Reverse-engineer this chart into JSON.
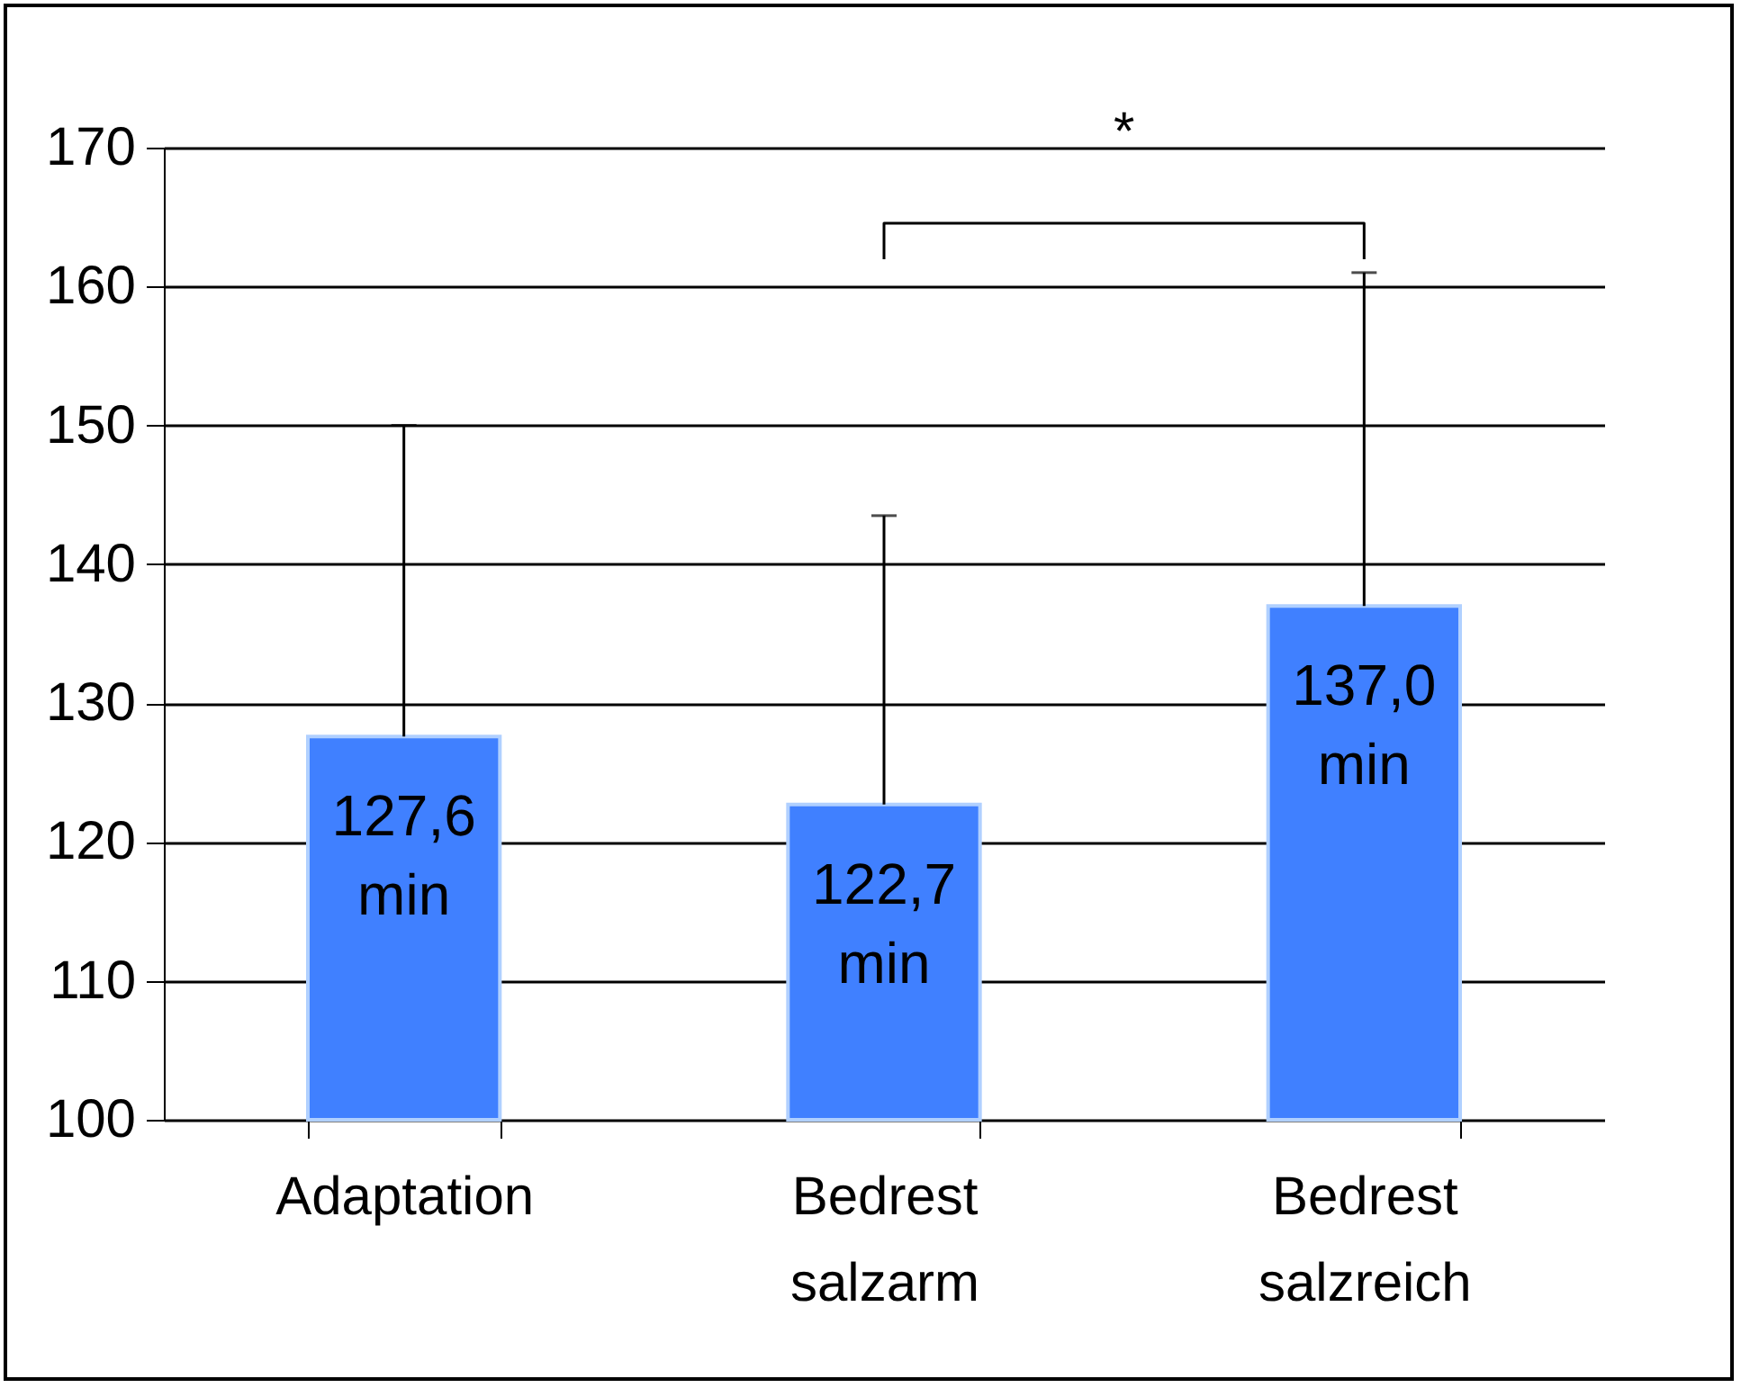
{
  "chart_data": {
    "type": "bar",
    "categories": [
      "Adaptation",
      "Bedrest salzarm",
      "Bedrest salzreich"
    ],
    "values": [
      127.6,
      122.7,
      137.0
    ],
    "color": "#4080ff",
    "errors": [
      [
        127.6,
        150.0
      ],
      [
        122.7,
        143.5
      ],
      [
        137.0,
        161.0
      ]
    ],
    "value_labels": [
      "127,6 min",
      "122,7 min",
      "137,0 min"
    ],
    "ylim": [
      100,
      170
    ],
    "yticks": [
      100,
      110,
      120,
      130,
      140,
      150,
      160,
      170
    ],
    "grid": "y",
    "annotations": [
      "*"
    ]
  }
}
